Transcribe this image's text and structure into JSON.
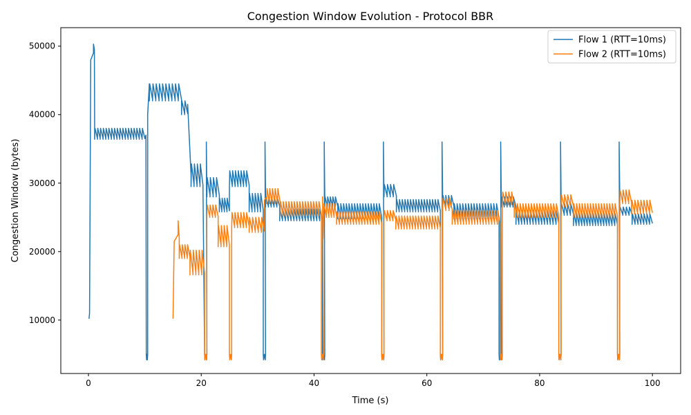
{
  "chart_data": {
    "type": "line",
    "title": "Congestion Window Evolution - Protocol BBR",
    "xlabel": "Time (s)",
    "ylabel": "Congestion Window (bytes)",
    "xlim": [
      -4.9,
      105.0
    ],
    "ylim": [
      2200,
      52700
    ],
    "xticks": [
      0,
      20,
      40,
      60,
      80,
      100
    ],
    "xtick_labels": [
      "0",
      "20",
      "40",
      "60",
      "80",
      "100"
    ],
    "yticks": [
      10000,
      20000,
      30000,
      40000,
      50000
    ],
    "ytick_labels": [
      "10000",
      "20000",
      "30000",
      "40000",
      "50000"
    ],
    "grid": false,
    "legend_position": "top-right",
    "series": [
      {
        "name": "Flow 1 (RTT=10ms)",
        "color": "#1f77b4",
        "segments": [
          {
            "t0": 0.1,
            "t1": 0.2,
            "type": "ramp",
            "from": 10200,
            "to": 11000
          },
          {
            "t0": 0.2,
            "t1": 0.4,
            "type": "ramp",
            "from": 11000,
            "to": 48000
          },
          {
            "t0": 0.4,
            "t1": 0.9,
            "type": "ramp",
            "from": 48000,
            "to": 49000
          },
          {
            "t0": 0.9,
            "t1": 1.05,
            "type": "ramp",
            "from": 50300,
            "to": 49500
          },
          {
            "t0": 1.1,
            "t1": 10.0,
            "type": "saw",
            "low": 36400,
            "high": 38000,
            "period": 0.5
          },
          {
            "t0": 10.0,
            "t1": 10.2,
            "type": "ramp",
            "from": 36500,
            "to": 37000
          },
          {
            "t0": 10.25,
            "t1": 10.5,
            "type": "dip",
            "low": 4200,
            "high": 5000
          },
          {
            "t0": 10.5,
            "t1": 10.8,
            "type": "ramp",
            "from": 40000,
            "to": 44500
          },
          {
            "t0": 10.8,
            "t1": 16.5,
            "type": "saw",
            "low": 42000,
            "high": 44500,
            "period": 0.55
          },
          {
            "t0": 16.5,
            "t1": 17.6,
            "type": "saw",
            "low": 40000,
            "high": 42000,
            "period": 0.5
          },
          {
            "t0": 17.6,
            "t1": 18.2,
            "type": "ramp",
            "from": 41500,
            "to": 31200
          },
          {
            "t0": 18.2,
            "t1": 20.3,
            "type": "saw",
            "low": 29500,
            "high": 32800,
            "period": 0.5
          },
          {
            "t0": 20.6,
            "t1": 21.0,
            "type": "dip",
            "low": 4200,
            "high": 5000
          },
          {
            "t0": 20.9,
            "t1": 21.0,
            "type": "spike",
            "value": 36000
          },
          {
            "t0": 21.0,
            "t1": 23.2,
            "type": "saw",
            "low": 28000,
            "high": 30800,
            "period": 0.5
          },
          {
            "t0": 23.2,
            "t1": 25.0,
            "type": "saw",
            "low": 25800,
            "high": 27800,
            "period": 0.5
          },
          {
            "t0": 25.0,
            "t1": 28.5,
            "type": "saw",
            "low": 29500,
            "high": 31800,
            "period": 0.5
          },
          {
            "t0": 28.5,
            "t1": 31.0,
            "type": "saw",
            "low": 25800,
            "high": 28500,
            "period": 0.5
          },
          {
            "t0": 31.0,
            "t1": 31.4,
            "type": "dip",
            "low": 4200,
            "high": 5000
          },
          {
            "t0": 31.3,
            "t1": 31.4,
            "type": "spike",
            "value": 36000
          },
          {
            "t0": 31.4,
            "t1": 33.9,
            "type": "saw",
            "low": 26500,
            "high": 28000,
            "period": 0.5
          },
          {
            "t0": 33.9,
            "t1": 41.5,
            "type": "saw",
            "low": 24500,
            "high": 26200,
            "period": 0.5
          },
          {
            "t0": 41.5,
            "t1": 41.9,
            "type": "dip",
            "low": 4200,
            "high": 5000
          },
          {
            "t0": 41.8,
            "t1": 41.9,
            "type": "spike",
            "value": 36000
          },
          {
            "t0": 41.9,
            "t1": 44.2,
            "type": "saw",
            "low": 26500,
            "high": 28000,
            "period": 0.5
          },
          {
            "t0": 44.2,
            "t1": 52.0,
            "type": "saw",
            "low": 24800,
            "high": 27000,
            "period": 0.5
          },
          {
            "t0": 52.0,
            "t1": 52.4,
            "type": "dip",
            "low": 4200,
            "high": 5000
          },
          {
            "t0": 52.3,
            "t1": 52.4,
            "type": "spike",
            "value": 36000
          },
          {
            "t0": 52.4,
            "t1": 54.6,
            "type": "saw",
            "low": 28000,
            "high": 29800,
            "period": 0.5
          },
          {
            "t0": 54.6,
            "t1": 62.4,
            "type": "saw",
            "low": 25800,
            "high": 27600,
            "period": 0.5
          },
          {
            "t0": 62.4,
            "t1": 62.8,
            "type": "dip",
            "low": 4200,
            "high": 5000
          },
          {
            "t0": 62.7,
            "t1": 62.8,
            "type": "spike",
            "value": 36000
          },
          {
            "t0": 62.8,
            "t1": 64.8,
            "type": "saw",
            "low": 26500,
            "high": 28200,
            "period": 0.5
          },
          {
            "t0": 64.8,
            "t1": 72.8,
            "type": "saw",
            "low": 24800,
            "high": 27000,
            "period": 0.5
          },
          {
            "t0": 72.8,
            "t1": 73.2,
            "type": "dip",
            "low": 4200,
            "high": 5000
          },
          {
            "t0": 73.1,
            "t1": 73.2,
            "type": "spike",
            "value": 36000
          },
          {
            "t0": 73.2,
            "t1": 75.8,
            "type": "saw",
            "low": 26500,
            "high": 28000,
            "period": 0.5
          },
          {
            "t0": 75.8,
            "t1": 83.4,
            "type": "saw",
            "low": 24000,
            "high": 26000,
            "period": 0.5
          },
          {
            "t0": 83.4,
            "t1": 83.8,
            "type": "dip",
            "low": 4200,
            "high": 5000
          },
          {
            "t0": 83.7,
            "t1": 83.8,
            "type": "spike",
            "value": 36000
          },
          {
            "t0": 83.8,
            "t1": 86.0,
            "type": "saw",
            "low": 25300,
            "high": 27000,
            "period": 0.5
          },
          {
            "t0": 86.0,
            "t1": 93.8,
            "type": "saw",
            "low": 23800,
            "high": 25600,
            "period": 0.5
          },
          {
            "t0": 93.8,
            "t1": 94.2,
            "type": "dip",
            "low": 4200,
            "high": 5000
          },
          {
            "t0": 94.1,
            "t1": 94.2,
            "type": "spike",
            "value": 36000
          },
          {
            "t0": 94.2,
            "t1": 96.4,
            "type": "saw",
            "low": 25300,
            "high": 26500,
            "period": 0.5
          },
          {
            "t0": 96.4,
            "t1": 100.0,
            "type": "saw",
            "low": 24000,
            "high": 25500,
            "period": 0.5
          }
        ]
      },
      {
        "name": "Flow 2 (RTT=10ms)",
        "color": "#ff7f0e",
        "segments": [
          {
            "t0": 15.0,
            "t1": 15.2,
            "type": "ramp",
            "from": 10200,
            "to": 21500
          },
          {
            "t0": 15.2,
            "t1": 15.9,
            "type": "ramp",
            "from": 21500,
            "to": 22500
          },
          {
            "t0": 15.9,
            "t1": 16.1,
            "type": "ramp",
            "from": 24500,
            "to": 22000
          },
          {
            "t0": 16.1,
            "t1": 18.0,
            "type": "saw",
            "low": 19000,
            "high": 21000,
            "period": 0.5
          },
          {
            "t0": 18.0,
            "t1": 20.6,
            "type": "saw",
            "low": 16600,
            "high": 20200,
            "period": 0.5
          },
          {
            "t0": 20.6,
            "t1": 21.0,
            "type": "dip",
            "low": 4200,
            "high": 5000
          },
          {
            "t0": 21.0,
            "t1": 23.0,
            "type": "saw",
            "low": 25000,
            "high": 26800,
            "period": 0.5
          },
          {
            "t0": 23.0,
            "t1": 25.0,
            "type": "saw",
            "low": 20700,
            "high": 23800,
            "period": 0.5
          },
          {
            "t0": 25.0,
            "t1": 25.4,
            "type": "dip",
            "low": 4200,
            "high": 5000
          },
          {
            "t0": 25.4,
            "t1": 28.5,
            "type": "saw",
            "low": 23500,
            "high": 25700,
            "period": 0.5
          },
          {
            "t0": 28.5,
            "t1": 31.2,
            "type": "saw",
            "low": 22800,
            "high": 25000,
            "period": 0.5
          },
          {
            "t0": 31.2,
            "t1": 31.6,
            "type": "ramp",
            "from": 27500,
            "to": 28000
          },
          {
            "t0": 31.6,
            "t1": 34.0,
            "type": "saw",
            "low": 27000,
            "high": 29200,
            "period": 0.5
          },
          {
            "t0": 34.0,
            "t1": 41.3,
            "type": "saw",
            "low": 25200,
            "high": 27300,
            "period": 0.5
          },
          {
            "t0": 41.3,
            "t1": 41.7,
            "type": "dip",
            "low": 4200,
            "high": 5000
          },
          {
            "t0": 41.5,
            "t1": 41.6,
            "type": "spike",
            "value": 28000
          },
          {
            "t0": 41.7,
            "t1": 44.0,
            "type": "saw",
            "low": 25000,
            "high": 27000,
            "period": 0.5
          },
          {
            "t0": 44.0,
            "t1": 52.0,
            "type": "saw",
            "low": 24000,
            "high": 25800,
            "period": 0.5
          },
          {
            "t0": 52.0,
            "t1": 52.4,
            "type": "dip",
            "low": 4200,
            "high": 5000
          },
          {
            "t0": 52.4,
            "t1": 54.5,
            "type": "saw",
            "low": 24500,
            "high": 26000,
            "period": 0.5
          },
          {
            "t0": 54.5,
            "t1": 62.4,
            "type": "saw",
            "low": 23300,
            "high": 25200,
            "period": 0.5
          },
          {
            "t0": 62.4,
            "t1": 62.8,
            "type": "dip",
            "low": 4200,
            "high": 5000
          },
          {
            "t0": 62.8,
            "t1": 64.5,
            "type": "saw",
            "low": 26000,
            "high": 27800,
            "period": 0.5
          },
          {
            "t0": 64.5,
            "t1": 73.0,
            "type": "saw",
            "low": 24000,
            "high": 26000,
            "period": 0.5
          },
          {
            "t0": 73.0,
            "t1": 73.4,
            "type": "dip",
            "low": 4200,
            "high": 5000
          },
          {
            "t0": 73.4,
            "t1": 75.5,
            "type": "saw",
            "low": 26800,
            "high": 28700,
            "period": 0.5
          },
          {
            "t0": 75.5,
            "t1": 83.4,
            "type": "saw",
            "low": 25000,
            "high": 27000,
            "period": 0.5
          },
          {
            "t0": 83.4,
            "t1": 83.8,
            "type": "dip",
            "low": 4200,
            "high": 5000
          },
          {
            "t0": 83.8,
            "t1": 86.0,
            "type": "saw",
            "low": 26500,
            "high": 28300,
            "period": 0.5
          },
          {
            "t0": 86.0,
            "t1": 93.8,
            "type": "saw",
            "low": 25000,
            "high": 27000,
            "period": 0.5
          },
          {
            "t0": 93.8,
            "t1": 94.2,
            "type": "dip",
            "low": 4200,
            "high": 5000
          },
          {
            "t0": 94.2,
            "t1": 96.3,
            "type": "saw",
            "low": 27000,
            "high": 29000,
            "period": 0.5
          },
          {
            "t0": 96.3,
            "t1": 100.0,
            "type": "saw",
            "low": 25500,
            "high": 27500,
            "period": 0.5
          }
        ]
      }
    ]
  }
}
